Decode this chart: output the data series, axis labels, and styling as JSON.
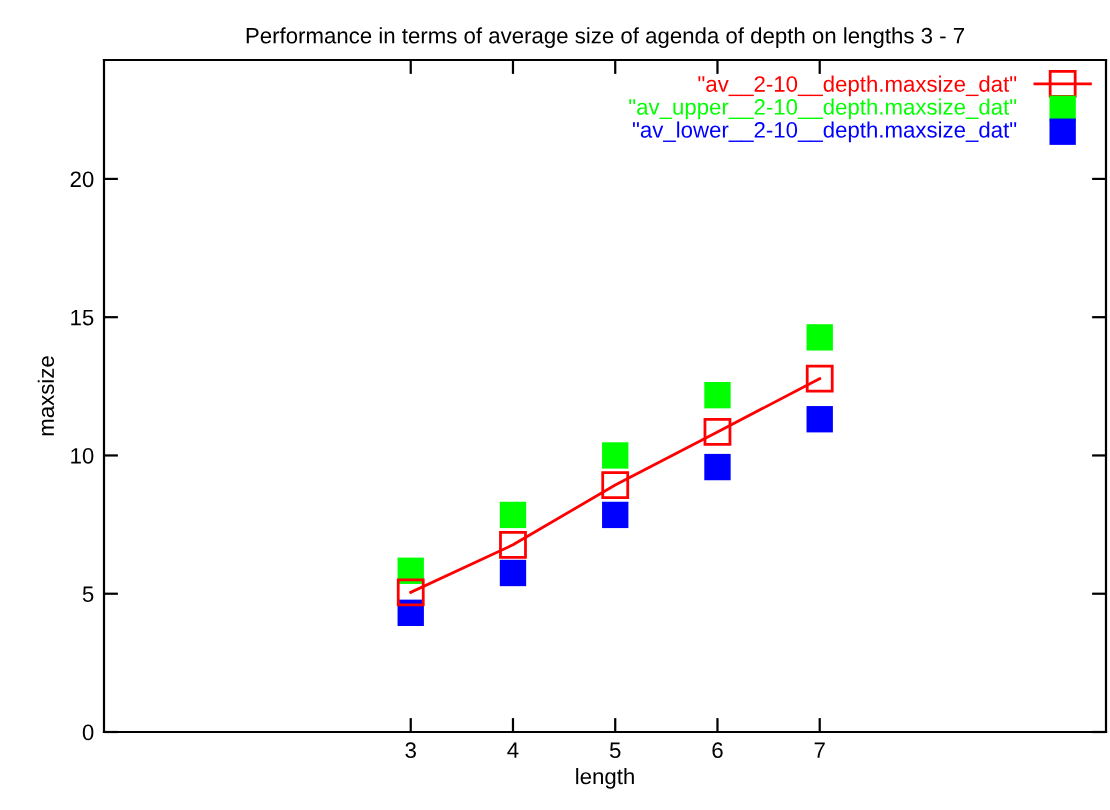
{
  "chart_data": {
    "type": "scatter",
    "title": "Performance in terms of average size of agenda of depth on lengths 3 - 7",
    "xlabel": "length",
    "ylabel": "maxsize",
    "x": [
      3,
      4,
      5,
      6,
      7
    ],
    "xlim": [
      0,
      9.8
    ],
    "xticks": [
      3,
      4,
      5,
      6,
      7
    ],
    "ylim": [
      0,
      24.3
    ],
    "yticks": [
      0,
      5,
      10,
      15,
      20
    ],
    "marker": "square",
    "grid": false,
    "legend": "top right",
    "series": [
      {
        "name": "\"av__2-10__depth.maxsize_dat\"",
        "type": "line",
        "color": "#ff0000",
        "values": [
          5.05,
          6.77,
          8.93,
          10.85,
          12.78
        ]
      },
      {
        "name": "\"av_upper__2-10__depth.maxsize_dat\"",
        "color": "#00ff00",
        "values": [
          5.83,
          7.85,
          10.0,
          12.18,
          14.27
        ]
      },
      {
        "name": "\"av_lower__2-10__depth.maxsize_dat\"",
        "color": "#0000ff",
        "values": [
          4.31,
          5.75,
          7.85,
          9.58,
          11.31
        ]
      }
    ]
  }
}
